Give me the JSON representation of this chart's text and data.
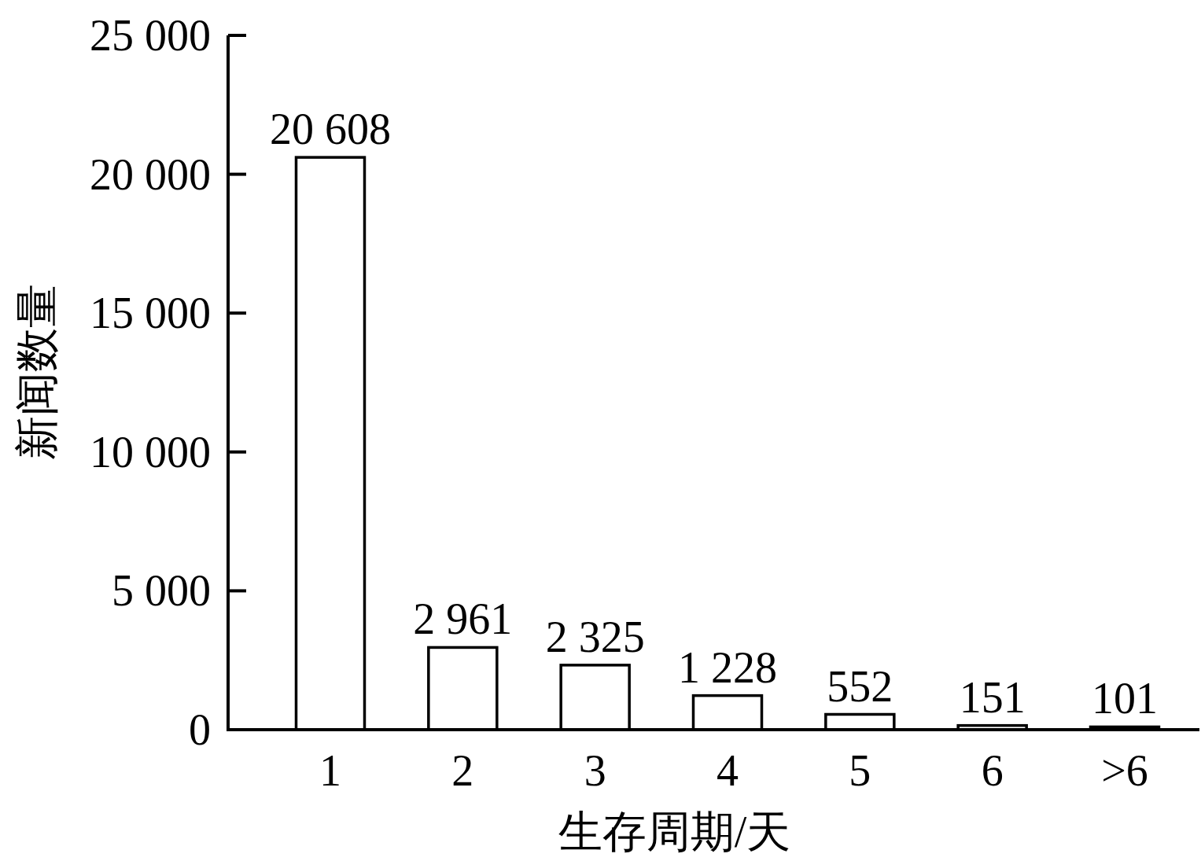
{
  "chart_data": {
    "type": "bar",
    "xlabel": "生存周期/天",
    "ylabel": "新闻数量",
    "categories": [
      "1",
      "2",
      "3",
      "4",
      "5",
      "6",
      ">6"
    ],
    "values": [
      20608,
      2961,
      2325,
      1228,
      552,
      151,
      101
    ],
    "color": "#ffffff",
    "value_labels": [
      "20 608",
      "2 961",
      "2 325",
      "1 228",
      "552",
      "151",
      "101"
    ],
    "ylim": [
      0,
      25000
    ],
    "yticks": [
      0,
      {
        "value": 5000,
        "label": "5 000"
      },
      {
        "value": 10000,
        "label": "10 000"
      },
      {
        "value": 15000,
        "label": "15 000"
      },
      {
        "value": 20000,
        "label": "20 000"
      },
      {
        "value": 25000,
        "label": "25 000"
      }
    ]
  }
}
